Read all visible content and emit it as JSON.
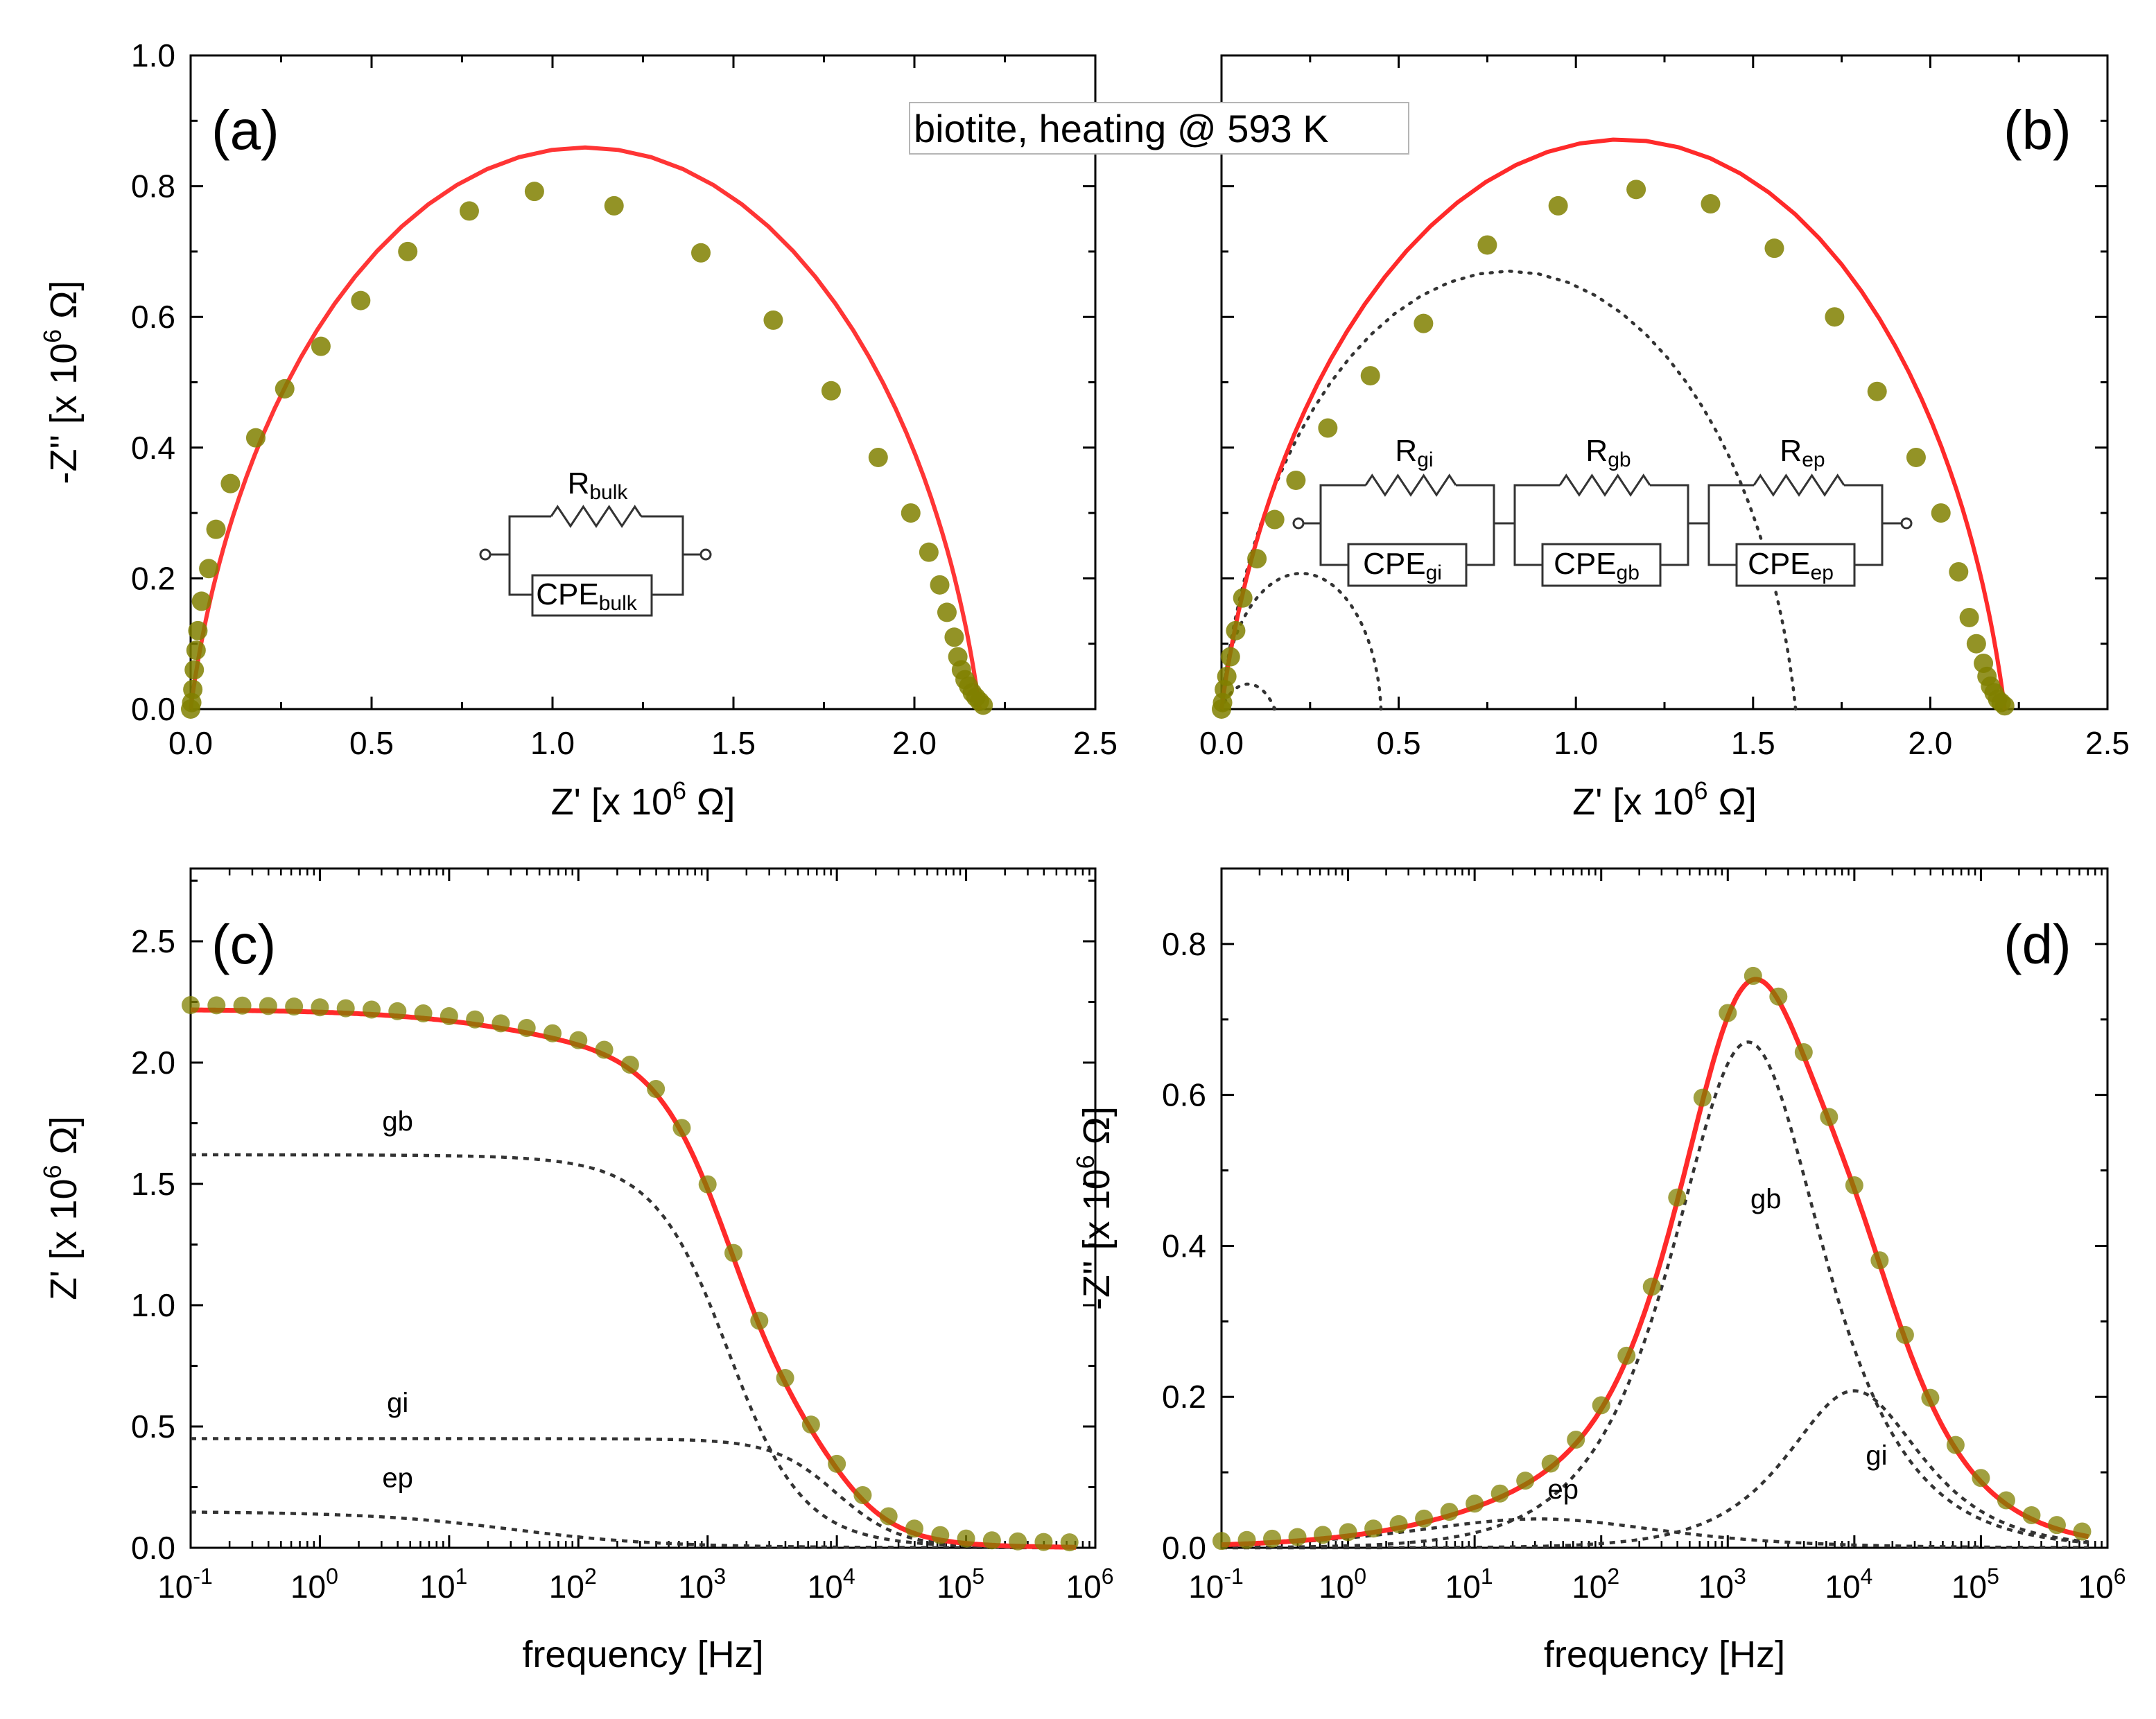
{
  "figure": {
    "annotation": "biotite, heating @ 593 K"
  },
  "chart_data": [
    {
      "panel": "(a)",
      "type": "scatter",
      "xlabel": "Z' [x 10^6 Ω]",
      "ylabel": "-Z'' [x 10^6 Ω]",
      "xlim": [
        0,
        2.5
      ],
      "ylim": [
        0,
        1.0
      ],
      "xticks": [
        "0.0",
        "0.5",
        "1.0",
        "1.5",
        "2.0",
        "2.5"
      ],
      "yticks": [
        "0.0",
        "0.2",
        "0.4",
        "0.6",
        "0.8",
        "1.0"
      ],
      "circuit": {
        "labels": [
          "R",
          "bulk",
          "CPE",
          "bulk"
        ]
      },
      "series": [
        {
          "kind": "points",
          "color": "#808000",
          "x": [
            0.0,
            0.003,
            0.006,
            0.01,
            0.015,
            0.02,
            0.03,
            0.05,
            0.07,
            0.11,
            0.18,
            0.26,
            0.36,
            0.47,
            0.6,
            0.77,
            0.95,
            1.17,
            1.41,
            1.61,
            1.77,
            1.9,
            1.99,
            2.04,
            2.07,
            2.09,
            2.11,
            2.12,
            2.13,
            2.14,
            2.15,
            2.16,
            2.17,
            2.18,
            2.19
          ],
          "y": [
            0.0,
            0.01,
            0.03,
            0.06,
            0.09,
            0.12,
            0.165,
            0.215,
            0.275,
            0.345,
            0.415,
            0.49,
            0.555,
            0.625,
            0.7,
            0.762,
            0.792,
            0.77,
            0.698,
            0.595,
            0.487,
            0.385,
            0.3,
            0.24,
            0.19,
            0.148,
            0.11,
            0.08,
            0.06,
            0.045,
            0.035,
            0.025,
            0.018,
            0.012,
            0.006
          ]
        },
        {
          "kind": "fit",
          "color": "#ff2a2a",
          "model": {
            "R": 2.18,
            "alpha": 0.85
          }
        }
      ]
    },
    {
      "panel": "(b)",
      "type": "scatter",
      "xlabel": "Z' [x 10^6 Ω]",
      "xlim": [
        0,
        2.5
      ],
      "ylim": [
        0,
        1.0
      ],
      "xticks": [
        "0.0",
        "0.5",
        "1.0",
        "1.5",
        "2.0",
        "2.5"
      ],
      "circuit": {
        "labels": [
          "R",
          "gi",
          "R",
          "gb",
          "R",
          "ep",
          "CPE",
          "gi",
          "CPE",
          "gb",
          "CPE",
          "ep"
        ]
      },
      "series": [
        {
          "kind": "points",
          "color": "#808000",
          "x": [
            0.0,
            0.003,
            0.008,
            0.015,
            0.025,
            0.04,
            0.06,
            0.1,
            0.15,
            0.21,
            0.3,
            0.42,
            0.57,
            0.75,
            0.95,
            1.17,
            1.38,
            1.56,
            1.73,
            1.85,
            1.96,
            2.03,
            2.08,
            2.11,
            2.13,
            2.15,
            2.16,
            2.17,
            2.18,
            2.19,
            2.2,
            2.21
          ],
          "y": [
            0.0,
            0.01,
            0.03,
            0.05,
            0.08,
            0.12,
            0.17,
            0.23,
            0.29,
            0.35,
            0.43,
            0.51,
            0.59,
            0.71,
            0.77,
            0.795,
            0.773,
            0.705,
            0.6,
            0.486,
            0.385,
            0.3,
            0.21,
            0.14,
            0.1,
            0.07,
            0.05,
            0.035,
            0.025,
            0.015,
            0.01,
            0.005
          ]
        },
        {
          "kind": "fit",
          "color": "#ff2a2a",
          "model": {
            "R": 2.21,
            "alpha": 0.85,
            "tilt": 0.05
          }
        },
        {
          "kind": "arc",
          "name": "gb",
          "R": 1.62,
          "x0": 0.0,
          "alpha": 0.88
        },
        {
          "kind": "arc",
          "name": "gi",
          "R": 0.45,
          "x0": 0.0,
          "alpha": 0.95
        },
        {
          "kind": "arc",
          "name": "ep",
          "R": 0.15,
          "x0": 0.0,
          "alpha": 0.6
        }
      ]
    },
    {
      "panel": "(c)",
      "type": "line",
      "xlabel": "frequency [Hz]",
      "ylabel": "Z' [x 10^6 Ω]",
      "xscale": "log",
      "xlim": [
        0.1,
        1000000
      ],
      "ylim": [
        0,
        2.8
      ],
      "xticks": [
        {
          "b": "10",
          "e": "-1"
        },
        {
          "b": "10",
          "e": "0"
        },
        {
          "b": "10",
          "e": "1"
        },
        {
          "b": "10",
          "e": "2"
        },
        {
          "b": "10",
          "e": "3"
        },
        {
          "b": "10",
          "e": "4"
        },
        {
          "b": "10",
          "e": "5"
        },
        {
          "b": "10",
          "e": "6"
        }
      ],
      "yticks": [
        "0.0",
        "0.5",
        "1.0",
        "1.5",
        "2.0",
        "2.5"
      ],
      "series": [
        {
          "kind": "points",
          "color": "#808000",
          "model": {
            "R": 2.2,
            "tau": 9e-05,
            "alpha": 0.9
          }
        },
        {
          "kind": "fit",
          "color": "#ff2a2a"
        },
        {
          "kind": "component",
          "name": "gb",
          "R": 1.62,
          "tau": 0.00011,
          "alpha": 0.88
        },
        {
          "kind": "component",
          "name": "gi",
          "R": 0.45,
          "tau": 1.6e-05,
          "alpha": 0.95
        },
        {
          "kind": "component",
          "name": "ep",
          "R": 0.15,
          "tau": 0.005,
          "alpha": 0.6
        }
      ],
      "labels": [
        {
          "text": "gb",
          "x": 4,
          "y": 1.72
        },
        {
          "text": "gi",
          "x": 4,
          "y": 0.56
        },
        {
          "text": "ep",
          "x": 4,
          "y": 0.25
        }
      ]
    },
    {
      "panel": "(d)",
      "type": "line",
      "xlabel": "frequency [Hz]",
      "ylabel": "-Z'' [x 10^6 Ω]",
      "xscale": "log",
      "xlim": [
        0.1,
        1000000
      ],
      "ylim": [
        0,
        0.9
      ],
      "xticks": [
        {
          "b": "10",
          "e": "-1"
        },
        {
          "b": "10",
          "e": "0"
        },
        {
          "b": "10",
          "e": "1"
        },
        {
          "b": "10",
          "e": "2"
        },
        {
          "b": "10",
          "e": "3"
        },
        {
          "b": "10",
          "e": "4"
        },
        {
          "b": "10",
          "e": "5"
        },
        {
          "b": "10",
          "e": "6"
        }
      ],
      "yticks": [
        "0.0",
        "0.2",
        "0.4",
        "0.6",
        "0.8"
      ],
      "series": [
        {
          "kind": "points",
          "color": "#808000"
        },
        {
          "kind": "fit",
          "color": "#ff2a2a"
        },
        {
          "kind": "component",
          "name": "gb",
          "R": 1.62,
          "tau": 0.00011,
          "alpha": 0.88
        },
        {
          "kind": "component",
          "name": "gi",
          "R": 0.45,
          "tau": 1.6e-05,
          "alpha": 0.95
        },
        {
          "kind": "component",
          "name": "ep",
          "R": 0.15,
          "tau": 0.005,
          "alpha": 0.6
        }
      ],
      "labels": [
        {
          "text": "gb",
          "x": 2000,
          "y": 0.45
        },
        {
          "text": "gi",
          "x": 15000,
          "y": 0.11
        },
        {
          "text": "ep",
          "x": 50,
          "y": 0.065
        }
      ]
    }
  ]
}
